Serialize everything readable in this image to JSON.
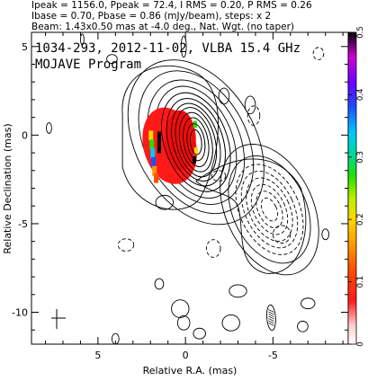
{
  "header": {
    "line1": "Ipeak = 1156.0, Ppeak = 72.4, I RMS = 0.20, P RMS = 0.26",
    "line2": "Ibase = 0.70, Pbase = 0.86 (mJy/beam), steps: x 2",
    "line3": "Beam: 1.43x0.50 mas at -4.0 deg., Nat. Wgt. (no taper)"
  },
  "plot_title": {
    "line1": "1034-293, 2012-11-02, VLBA 15.4 GHz",
    "line2": "MOJAVE Program"
  },
  "chart_data": {
    "type": "contour",
    "xlabel": "Relative R.A. (mas)",
    "ylabel": "Relative Declination (mas)",
    "xlim": [
      8.8,
      -9.3
    ],
    "ylim": [
      -11.8,
      5.8
    ],
    "xticks": [
      5,
      0,
      -5
    ],
    "yticks": [
      5,
      0,
      -5,
      -10
    ],
    "xtick_labels": [
      "5",
      "0",
      "-5"
    ],
    "ytick_labels": [
      "5",
      "0",
      "-5",
      "-10"
    ],
    "colorbar": {
      "range": [
        0,
        0.5
      ],
      "ticks": [
        0,
        0.1,
        0.2,
        0.3,
        0.4,
        0.5
      ],
      "tick_labels": [
        "0",
        "0.1",
        "0.2",
        "0.3",
        "0.4",
        "0.5"
      ]
    },
    "core": {
      "x": -0.1,
      "y": 0.0
    },
    "jet_component": {
      "x": -4.8,
      "y": -4.2
    },
    "polarized_region": {
      "x_range": [
        2.0,
        -0.6
      ],
      "y_range": [
        -2.6,
        1.6
      ]
    }
  }
}
